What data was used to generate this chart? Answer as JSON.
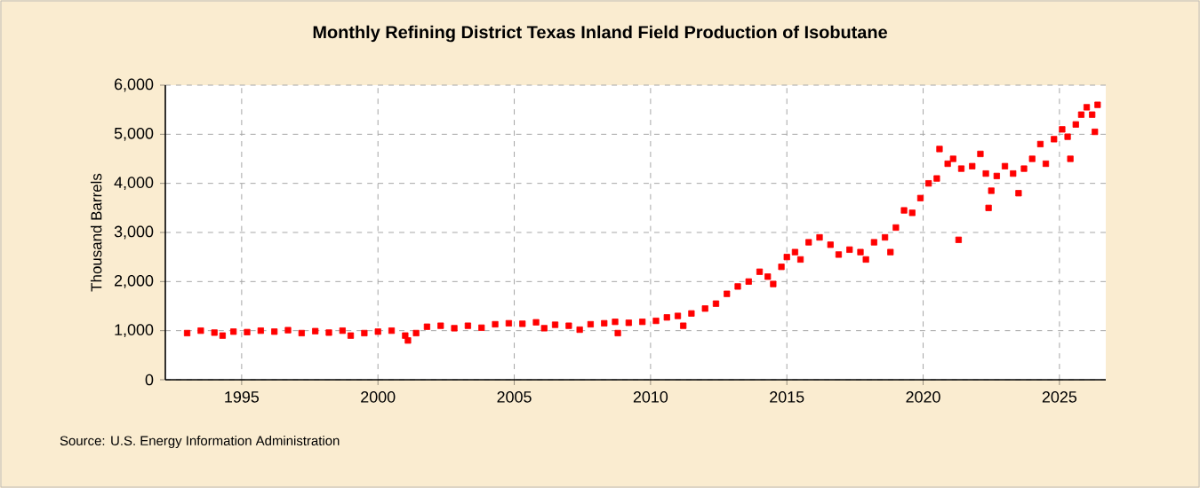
{
  "chart_data": {
    "type": "scatter",
    "title": "Monthly Refining District Texas Inland Field Production of Isobutane",
    "ylabel": "Thousand Barrels",
    "annotations": [
      "Source: U.S. Energy Information Administration"
    ],
    "x": [
      1993.0,
      1993.5,
      1994.0,
      1994.3,
      1994.7,
      1995.2,
      1995.7,
      1996.2,
      1996.7,
      1997.2,
      1997.7,
      1998.2,
      1998.7,
      1999.0,
      1999.5,
      2000.0,
      2000.5,
      2001.0,
      2001.1,
      2001.4,
      2001.8,
      2002.3,
      2002.8,
      2003.3,
      2003.8,
      2004.3,
      2004.8,
      2005.3,
      2005.8,
      2006.1,
      2006.5,
      2007.0,
      2007.4,
      2007.8,
      2008.3,
      2008.7,
      2008.8,
      2009.2,
      2009.7,
      2010.2,
      2010.6,
      2011.0,
      2011.2,
      2011.5,
      2012.0,
      2012.4,
      2012.8,
      2013.2,
      2013.6,
      2014.0,
      2014.3,
      2014.5,
      2014.8,
      2015.0,
      2015.3,
      2015.5,
      2015.8,
      2016.2,
      2016.6,
      2016.9,
      2017.3,
      2017.7,
      2017.9,
      2018.2,
      2018.6,
      2018.8,
      2019.0,
      2019.3,
      2019.6,
      2019.9,
      2020.2,
      2020.5,
      2020.6,
      2020.9,
      2021.1,
      2021.3,
      2021.4,
      2021.8,
      2022.1,
      2022.3,
      2022.4,
      2022.5,
      2022.7,
      2023.0,
      2023.3,
      2023.5,
      2023.7,
      2024.0,
      2024.3,
      2024.5,
      2024.8,
      2025.1,
      2025.3,
      2025.4,
      2025.6,
      2025.8,
      2026.0,
      2026.2,
      2026.3,
      2026.4
    ],
    "series": [
      {
        "color": "#ff0000",
        "values": [
          950,
          1000,
          960,
          900,
          980,
          970,
          1000,
          980,
          1010,
          950,
          990,
          960,
          1000,
          900,
          950,
          980,
          1000,
          900,
          800,
          950,
          1080,
          1100,
          1050,
          1100,
          1060,
          1130,
          1150,
          1140,
          1170,
          1050,
          1120,
          1100,
          1020,
          1130,
          1150,
          1180,
          950,
          1160,
          1180,
          1200,
          1270,
          1300,
          1100,
          1350,
          1450,
          1550,
          1750,
          1900,
          2000,
          2200,
          2100,
          1950,
          2300,
          2500,
          2600,
          2450,
          2800,
          2900,
          2750,
          2550,
          2650,
          2600,
          2450,
          2800,
          2900,
          2600,
          3100,
          3450,
          3400,
          3700,
          4000,
          4100,
          4700,
          4400,
          4500,
          2850,
          4300,
          4350,
          4600,
          4200,
          3500,
          3850,
          4150,
          4350,
          4200,
          3800,
          4300,
          4500,
          4800,
          4400,
          4900,
          5100,
          4950,
          4500,
          5200,
          5400,
          5550,
          5400,
          5050,
          5600
        ]
      }
    ],
    "xlim": [
      1992.2,
      2026.7
    ],
    "xticks": [
      1995,
      2000,
      2005,
      2010,
      2015,
      2020,
      2025
    ],
    "ylim": [
      0,
      6000
    ],
    "yticks": [
      0,
      {
        "value": 1000,
        "label": "1,000"
      },
      {
        "value": 2000,
        "label": "2,000"
      },
      {
        "value": 3000,
        "label": "3,000"
      },
      {
        "value": 4000,
        "label": "4,000"
      },
      {
        "value": 5000,
        "label": "5,000"
      },
      {
        "value": 6000,
        "label": "6,000"
      }
    ],
    "grid": true,
    "marker": "square"
  }
}
